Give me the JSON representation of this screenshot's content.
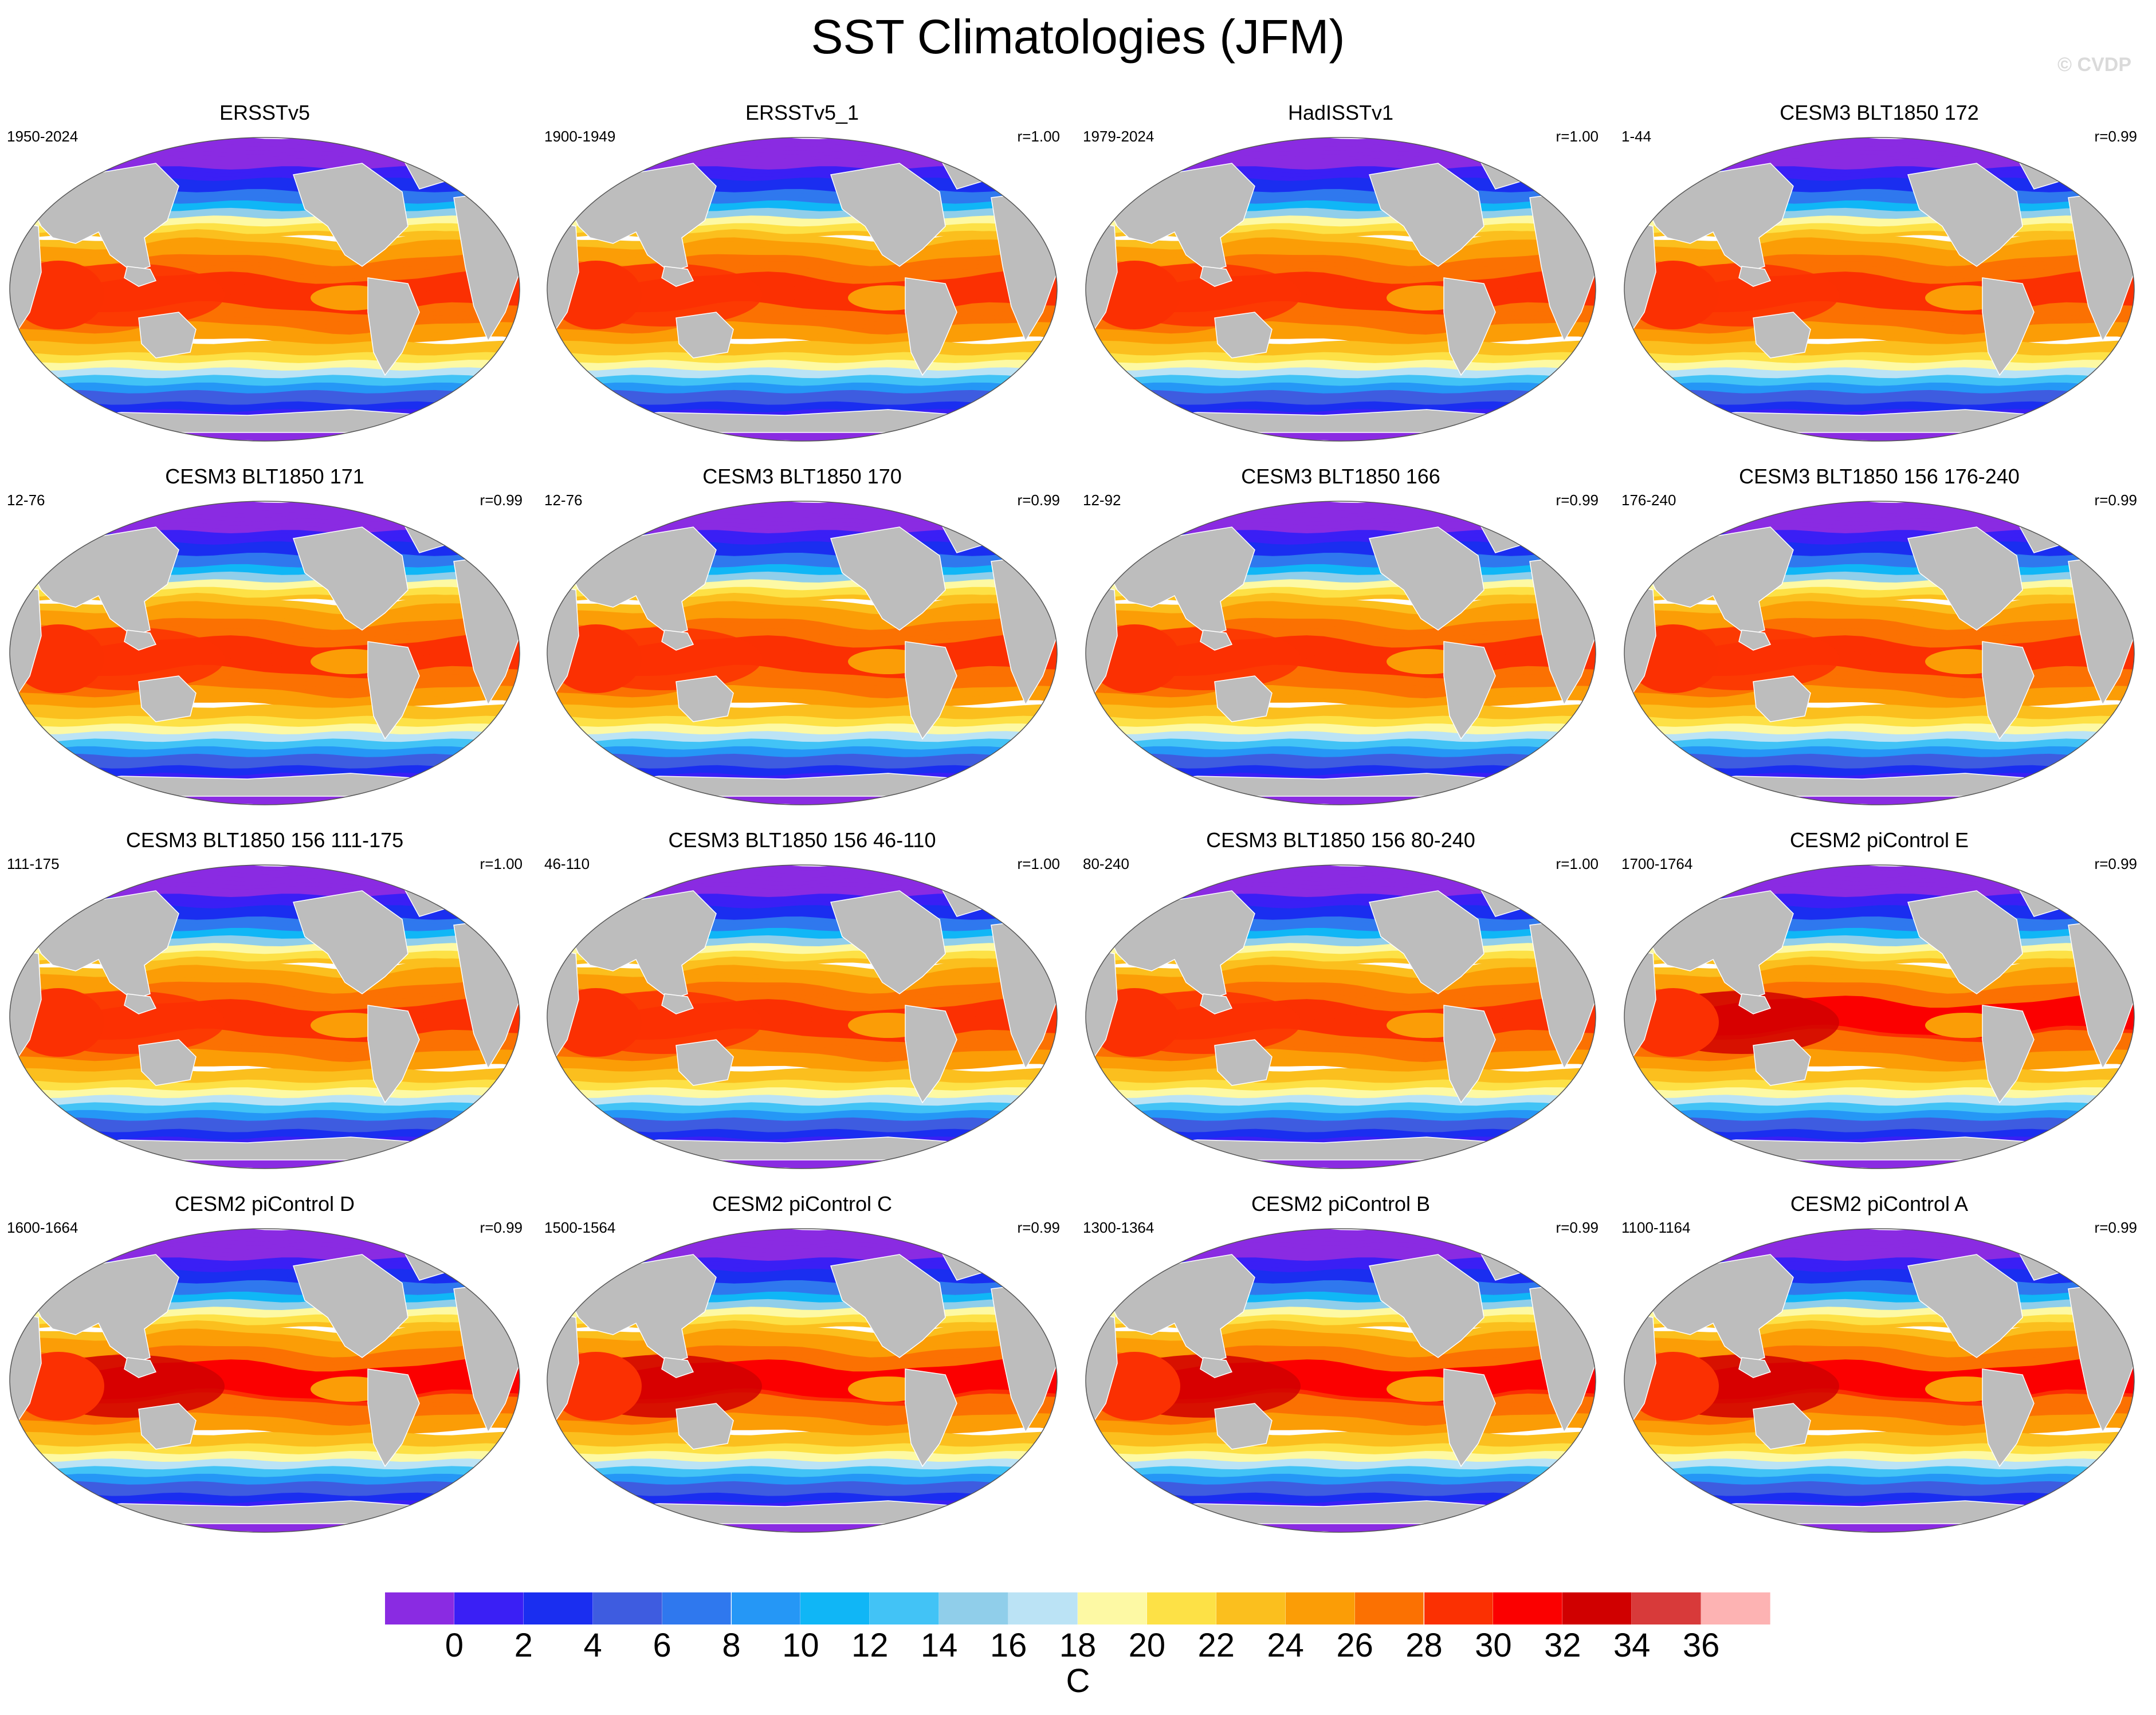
{
  "figure": {
    "title": "SST Climatologies (JFM)",
    "watermark": "© CVDP"
  },
  "panels": [
    {
      "title": "ERSSTv5",
      "years": "1950-2024",
      "r": ""
    },
    {
      "title": "ERSSTv5_1",
      "years": "1900-1949",
      "r": "r=1.00"
    },
    {
      "title": "HadISSTv1",
      "years": "1979-2024",
      "r": "r=1.00"
    },
    {
      "title": "CESM3 BLT1850 172",
      "years": "1-44",
      "r": "r=0.99"
    },
    {
      "title": "CESM3 BLT1850 171",
      "years": "12-76",
      "r": "r=0.99"
    },
    {
      "title": "CESM3 BLT1850 170",
      "years": "12-76",
      "r": "r=0.99"
    },
    {
      "title": "CESM3 BLT1850 166",
      "years": "12-92",
      "r": "r=0.99"
    },
    {
      "title": "CESM3 BLT1850 156 176-240",
      "years": "176-240",
      "r": "r=0.99"
    },
    {
      "title": "CESM3 BLT1850 156 111-175",
      "years": "111-175",
      "r": "r=1.00"
    },
    {
      "title": "CESM3 BLT1850 156 46-110",
      "years": "46-110",
      "r": "r=1.00"
    },
    {
      "title": "CESM3 BLT1850 156 80-240",
      "years": "80-240",
      "r": "r=1.00"
    },
    {
      "title": "CESM2 piControl E",
      "years": "1700-1764",
      "r": "r=0.99"
    },
    {
      "title": "CESM2 piControl D",
      "years": "1600-1664",
      "r": "r=0.99"
    },
    {
      "title": "CESM2 piControl C",
      "years": "1500-1564",
      "r": "r=0.99"
    },
    {
      "title": "CESM2 piControl B",
      "years": "1300-1364",
      "r": "r=0.99"
    },
    {
      "title": "CESM2 piControl A",
      "years": "1100-1164",
      "r": "r=0.99"
    }
  ],
  "colorbar": {
    "units": "C",
    "tick_labels": [
      "0",
      "2",
      "4",
      "6",
      "8",
      "10",
      "12",
      "14",
      "16",
      "18",
      "20",
      "22",
      "24",
      "26",
      "28",
      "30",
      "32",
      "34",
      "36"
    ],
    "colors": [
      "#8a2be2",
      "#3a1ff5",
      "#1a2ef0",
      "#3e5ce0",
      "#2f78ee",
      "#2597f6",
      "#10b6f6",
      "#42c3f6",
      "#90ceea",
      "#bbe3f5",
      "#fdf9a4",
      "#fde146",
      "#fbbf1e",
      "#fb9d06",
      "#fb7102",
      "#fb3002",
      "#fb0000",
      "#d00000",
      "#d83a3a",
      "#fdb3b3"
    ],
    "land_color": "#bdbdbd"
  }
}
